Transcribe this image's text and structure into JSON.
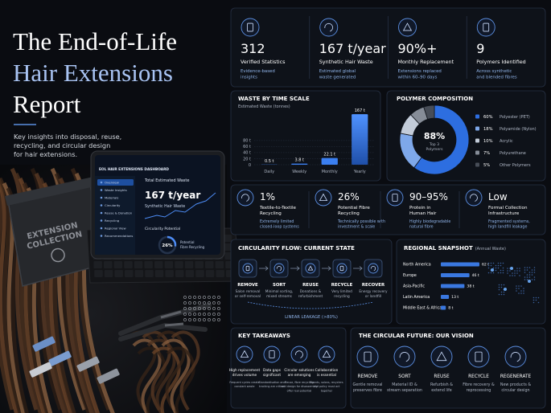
{
  "header": {
    "title_lines": [
      "The End-of-Life",
      "Hair Extensions",
      "Report"
    ],
    "subtitle_lines": [
      "Key insights into disposal, reuse,",
      "recycling, and circular design",
      "for hair extensions."
    ]
  },
  "photo": {
    "dashboard_title": "EOL HAIR EXTENSIONS DASHBOARD",
    "menu": [
      "Overview",
      "Waste Insights",
      "Materials",
      "Circularity",
      "Reuse & Donation",
      "Recycling",
      "Regional View",
      "Recommendations"
    ],
    "waste_label": "Total Estimated Waste",
    "waste_value": "167 t/year",
    "waste_caption": "Synthetic Hair Waste",
    "circularity_label": "Circularity Potential",
    "circularity_value": "26%",
    "circularity_caption": [
      "Potential",
      "Fibre Recycling"
    ],
    "bin_label": [
      "EXTENSION",
      "COLLECTION"
    ]
  },
  "stats": [
    {
      "value": "312",
      "label": "Verified Statistics",
      "note": [
        "Evidence-based",
        "insights"
      ]
    },
    {
      "value": "167 t/year",
      "label": "Synthetic Hair Waste",
      "note": [
        "Estimated global",
        "waste generated"
      ]
    },
    {
      "value": "90%+",
      "label": "Monthly Replacement",
      "note": [
        "Extensions replaced",
        "within 60–90 days"
      ]
    },
    {
      "value": "9",
      "label": "Polymers Identified",
      "note": [
        "Across synthetic",
        "and blended fibres"
      ]
    }
  ],
  "chart_data": [
    {
      "type": "bar",
      "title": "WASTE BY TIME SCALE",
      "y_label": "Estimated Waste (tonnes)",
      "categories": [
        "Daily",
        "Weekly",
        "Monthly",
        "Yearly"
      ],
      "values": [
        0.5,
        3.8,
        22.1,
        167
      ],
      "value_labels": [
        "0.5 t",
        "3.8 t",
        "22.1 t",
        "167 t"
      ],
      "color": "#3b7ff0",
      "ylim": [
        0,
        170
      ],
      "yticks": [
        0,
        {
          "value": 20,
          "label": "20 t"
        },
        {
          "value": 40,
          "label": "40 t"
        },
        {
          "value": 60,
          "label": "60 t"
        },
        {
          "value": 80,
          "label": "80 t"
        }
      ],
      "grid": true
    },
    {
      "type": "pie",
      "title": "POLYMER COMPOSITION",
      "center_value": "88%",
      "center_label": [
        "Top 3",
        "Polymers"
      ],
      "categories": [
        "Polyester (PET)",
        "Polyamide (Nylon)",
        "Acrylic",
        "Polyurethane",
        "Other Polymers"
      ],
      "values": [
        60,
        18,
        10,
        7,
        5
      ],
      "value_labels": [
        "60%",
        "18%",
        "10%",
        "7%",
        "5%"
      ],
      "colors": [
        "#2d6ee0",
        "#7ea8ea",
        "#c3ccd9",
        "#868d98",
        "#474d57"
      ]
    },
    {
      "type": "hbar",
      "title": "REGIONAL SNAPSHOT",
      "subtitle": "(Annual Waste)",
      "categories": [
        "North America",
        "Europe",
        "Asia-Pacific",
        "Latin America",
        "Middle East & Africa"
      ],
      "values": [
        62,
        46,
        38,
        13,
        8
      ],
      "value_labels": [
        "62 t",
        "46 t",
        "38 t",
        "13 t",
        "8 t"
      ],
      "color": "#3a78e0"
    }
  ],
  "impact": [
    {
      "value": "1%",
      "label": [
        "Textile-to-Textile",
        "Recycling"
      ],
      "note": [
        "Extremely limited",
        "closed-loop systems"
      ]
    },
    {
      "value": "26%",
      "label": [
        "Potential Fibre",
        "Recycling"
      ],
      "note": [
        "Technically possible with",
        "investment & scale"
      ]
    },
    {
      "value": "90–95%",
      "label": [
        "Protein in",
        "Human Hair"
      ],
      "note": [
        "Highly biodegradable",
        "natural fibre"
      ]
    },
    {
      "value": "Low",
      "label": [
        "Formal Collection",
        "Infrastructure"
      ],
      "note": [
        "Fragmented systems,",
        "high landfill leakage"
      ]
    }
  ],
  "flow": {
    "title": "CIRCULARITY FLOW: CURRENT STATE",
    "steps": [
      {
        "label": "REMOVE",
        "note": [
          "Salon removal",
          "or self-removal"
        ]
      },
      {
        "label": "SORT",
        "note": [
          "Minimal sorting,",
          "mixed streams"
        ]
      },
      {
        "label": "REUSE",
        "note": [
          "Donations &",
          "refurbishment"
        ]
      },
      {
        "label": "RECYCLE",
        "note": [
          "Very limited",
          "recycling"
        ]
      },
      {
        "label": "RECOVER",
        "note": [
          "Energy recovery",
          "or landfill"
        ]
      }
    ],
    "leakage": "LINEAR LEAKAGE (>80%)"
  },
  "takeaways": {
    "title": "KEY TAKEAWAYS",
    "items": [
      {
        "label": [
          "High replacement",
          "drives volume"
        ],
        "note": [
          "Frequent cycles create",
          "constant waste"
        ]
      },
      {
        "label": [
          "Data gaps",
          "significant"
        ],
        "note": [
          "Standardisation and",
          "tracking are critical"
        ]
      },
      {
        "label": [
          "Circular solutions",
          "are emerging"
        ],
        "note": [
          "Reuse, fibre recycling",
          "and design for disassembly",
          "offer real potential"
        ]
      },
      {
        "label": [
          "Collaboration",
          "is essential"
        ],
        "note": [
          "Brands, salons, recyclers",
          "and policy must act",
          "together"
        ]
      }
    ]
  },
  "vision": {
    "title": "THE CIRCULAR FUTURE: OUR VISION",
    "steps": [
      {
        "label": "REMOVE",
        "note": [
          "Gentle removal",
          "preserves fibre"
        ]
      },
      {
        "label": "SORT",
        "note": [
          "Material ID &",
          "stream separation"
        ]
      },
      {
        "label": "REUSE",
        "note": [
          "Refurbish &",
          "extend life"
        ]
      },
      {
        "label": "RECYCLE",
        "note": [
          "Fibre recovery &",
          "reprocessing"
        ]
      },
      {
        "label": "REGENERATE",
        "note": [
          "New products &",
          "circular design"
        ]
      }
    ]
  }
}
